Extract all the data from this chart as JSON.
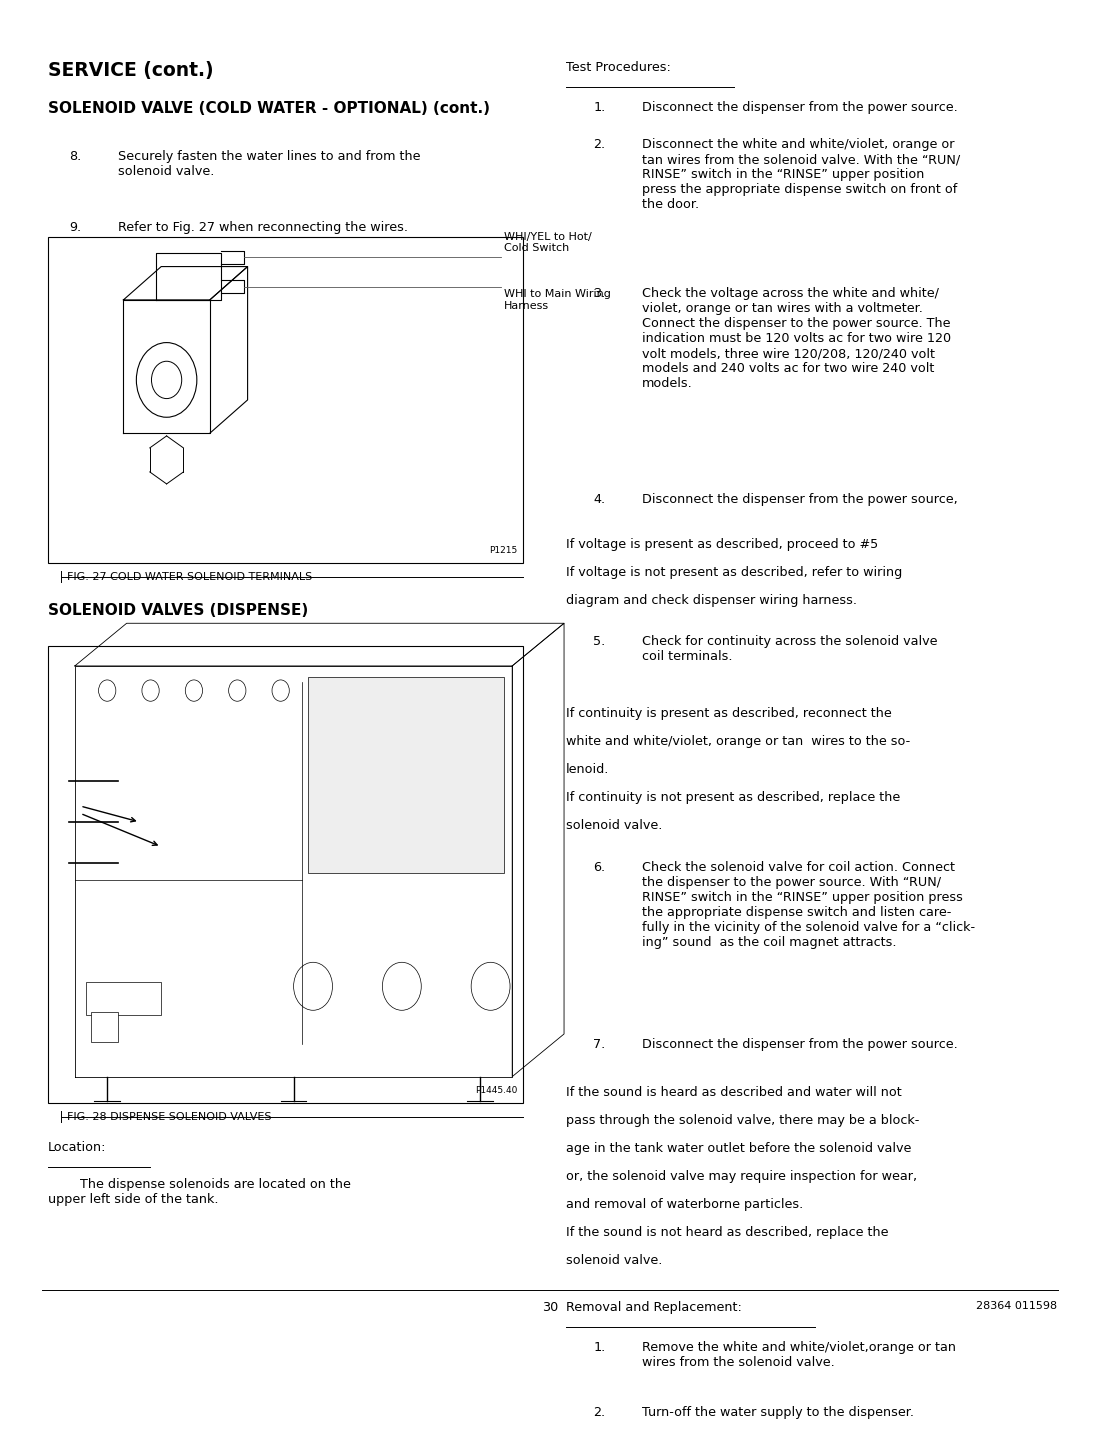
{
  "page_width": 10.8,
  "page_height": 13.97,
  "bg_color": "#ffffff",
  "left_heading1": "SERVICE (cont.)",
  "left_heading2": "SOLENOID VALVE (COLD WATER - OPTIONAL) (cont.)",
  "left_items": [
    {
      "num": "8.",
      "text": "Securely fasten the water lines to and from the\nsolenoid valve."
    },
    {
      "num": "9.",
      "text": "Refer to Fig. 27 when reconnecting the wires."
    }
  ],
  "fig27_caption": "FIG. 27 COLD WATER SOLENOID TERMINALS",
  "fig27_partnum": "P1215",
  "fig27_label1": "WHI/YEL to Hot/\nCold Switch",
  "fig27_label2": "WHI to Main Wiring\nHarness",
  "solenoid_heading": "SOLENOID VALVES (DISPENSE)",
  "fig28_caption": "FIG. 28 DISPENSE SOLENOID VALVES",
  "fig28_partnum": "P1445.40",
  "location_heading": "Location:",
  "location_text": "        The dispense solenoids are located on the\nupper left side of the tank.",
  "page_number": "30",
  "doc_number": "28364 011598",
  "right_heading": "Test Procedures:",
  "right_items": [
    {
      "num": "1.",
      "text": "Disconnect the dispenser from the power source."
    },
    {
      "num": "2.",
      "text": "Disconnect the white and white/violet, orange or\ntan wires from the solenoid valve. With the “RUN/\nRINSE” switch in the “RINSE” upper position\npress the appropriate dispense switch on front of\nthe door."
    },
    {
      "num": "3.",
      "text": "Check the voltage across the white and white/\nviolet, orange or tan wires with a voltmeter.\nConnect the dispenser to the power source. The\nindication must be 120 volts ac for two wire 120\nvolt models, three wire 120/208, 120/240 volt\nmodels and 240 volts ac for two wire 240 volt\nmodels."
    },
    {
      "num": "4.",
      "text": "Disconnect the dispenser from the power source,"
    }
  ],
  "right_para1": "If voltage is present as described, proceed to #5\nIf voltage is not present as described, refer to wiring\ndiagram and check dispenser wiring harness.",
  "right_item5": {
    "num": "5.",
    "text": "Check for continuity across the solenoid valve\ncoil terminals."
  },
  "right_para2": "If continuity is present as described, reconnect the\nwhite and white/violet, orange or tan  wires to the so-\nlenoid.\nIf continuity is not present as described, replace the\nsolenoid valve.",
  "right_items2": [
    {
      "num": "6.",
      "text": "Check the solenoid valve for coil action. Connect\nthe dispenser to the power source. With “RUN/\nRINSE” switch in the “RINSE” upper position press\nthe appropriate dispense switch and listen care-\nfully in the vicinity of the solenoid valve for a “click-\ning” sound  as the coil magnet attracts."
    },
    {
      "num": "7.",
      "text": "Disconnect the dispenser from the power source."
    }
  ],
  "right_para3": "If the sound is heard as described and water will not\npass through the solenoid valve, there may be a block-\nage in the tank water outlet before the solenoid valve\nor, the solenoid valve may require inspection for wear,\nand removal of waterborne particles.\nIf the sound is not heard as described, replace the\nsolenoid valve.",
  "removal_heading": "Removal and Replacement:",
  "removal_items": [
    {
      "num": "1.",
      "text": "Remove the white and white/violet,orange or tan\nwires from the solenoid valve."
    },
    {
      "num": "2.",
      "text": "Turn-off the water supply to the dispenser."
    }
  ]
}
